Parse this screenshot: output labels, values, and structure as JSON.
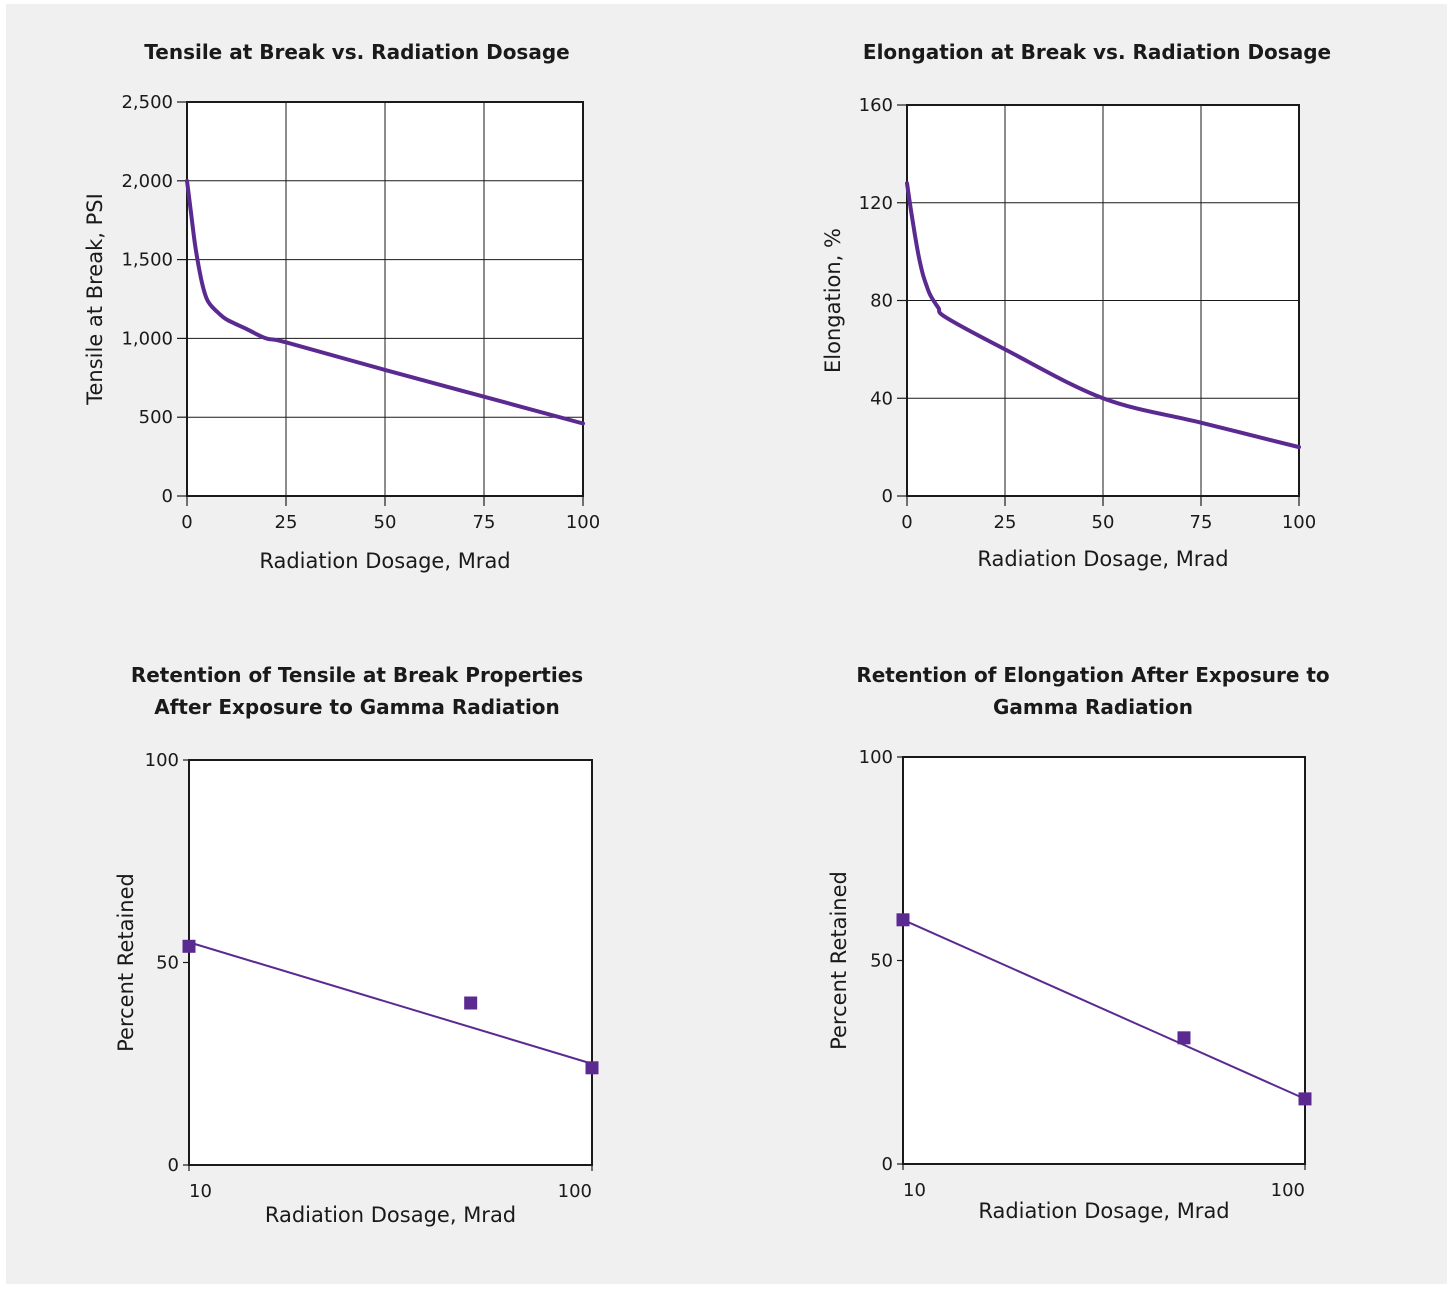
{
  "chart_data": [
    {
      "type": "line",
      "title": "Tensile at Break vs. Radiation Dosage",
      "xlabel": "Radiation Dosage, Mrad",
      "ylabel": "Tensile at Break, PSI",
      "xlim": [
        0,
        100
      ],
      "ylim": [
        0,
        2500
      ],
      "xticks": [
        0,
        25,
        50,
        75,
        100
      ],
      "xtick_labels": [
        "0",
        "25",
        "50",
        "75",
        "100"
      ],
      "yticks": [
        0,
        500,
        1000,
        1500,
        2000,
        2500
      ],
      "ytick_labels": [
        "0",
        "500",
        "1,000",
        "1,500",
        "2,000",
        "2,500"
      ],
      "grid": true,
      "x_scale": "linear",
      "line_color": "#5b2a91",
      "series": [
        {
          "x": [
            0,
            1,
            2,
            3,
            4,
            5,
            6,
            8,
            10,
            15,
            20,
            25,
            50,
            75,
            100
          ],
          "y": [
            2000,
            1800,
            1600,
            1450,
            1330,
            1250,
            1210,
            1160,
            1120,
            1060,
            1000,
            975,
            800,
            630,
            460
          ]
        }
      ]
    },
    {
      "type": "line",
      "title": "Elongation at Break vs. Radiation Dosage",
      "xlabel": "Radiation Dosage, Mrad",
      "ylabel": "Elongation, %",
      "xlim": [
        0,
        100
      ],
      "ylim": [
        0,
        160
      ],
      "xticks": [
        0,
        25,
        50,
        75,
        100
      ],
      "xtick_labels": [
        "0",
        "25",
        "50",
        "75",
        "100"
      ],
      "yticks": [
        0,
        40,
        80,
        120,
        160
      ],
      "ytick_labels": [
        "0",
        "40",
        "80",
        "120",
        "160"
      ],
      "grid": true,
      "x_scale": "linear",
      "line_color": "#5b2a91",
      "series": [
        {
          "x": [
            0,
            1,
            2,
            3,
            4,
            5,
            6,
            8,
            10,
            25,
            50,
            75,
            100
          ],
          "y": [
            128,
            117,
            107,
            98,
            91,
            86,
            82,
            77,
            73,
            60,
            40,
            30,
            20
          ]
        }
      ]
    },
    {
      "type": "scatter",
      "title": "Retention of Tensile at Break Properties After Exposure to Gamma Radiation",
      "title_lines": [
        "Retention of Tensile at Break Properties",
        "After Exposure to Gamma Radiation"
      ],
      "xlabel": "Radiation Dosage, Mrad",
      "ylabel": "Percent Retained",
      "xlim": [
        10,
        100
      ],
      "ylim": [
        0,
        100
      ],
      "xticks": [
        10,
        100
      ],
      "xtick_labels": [
        "10",
        "100"
      ],
      "yticks": [
        0,
        50,
        100
      ],
      "ytick_labels": [
        "0",
        "50",
        "100"
      ],
      "grid": false,
      "x_scale": "log",
      "marker_color": "#5b2a91",
      "series": [
        {
          "points": [
            {
              "x": 10,
              "y": 54
            },
            {
              "x": 50,
              "y": 40
            },
            {
              "x": 100,
              "y": 24
            }
          ],
          "fit": {
            "x": [
              10,
              100
            ],
            "y": [
              55,
              25
            ]
          }
        }
      ]
    },
    {
      "type": "scatter",
      "title": "Retention of Elongation After Exposure to Gamma Radiation",
      "title_lines": [
        "Retention of Elongation After Exposure to",
        "Gamma Radiation"
      ],
      "xlabel": "Radiation Dosage, Mrad",
      "ylabel": "Percent Retained",
      "xlim": [
        10,
        100
      ],
      "ylim": [
        0,
        100
      ],
      "xticks": [
        10,
        100
      ],
      "xtick_labels": [
        "10",
        "100"
      ],
      "yticks": [
        0,
        50,
        100
      ],
      "ytick_labels": [
        "0",
        "50",
        "100"
      ],
      "grid": false,
      "x_scale": "log",
      "marker_color": "#5b2a91",
      "series": [
        {
          "points": [
            {
              "x": 10,
              "y": 60
            },
            {
              "x": 50,
              "y": 31
            },
            {
              "x": 100,
              "y": 16
            }
          ],
          "fit": {
            "x": [
              10,
              100
            ],
            "y": [
              60,
              16
            ]
          }
        }
      ]
    }
  ]
}
